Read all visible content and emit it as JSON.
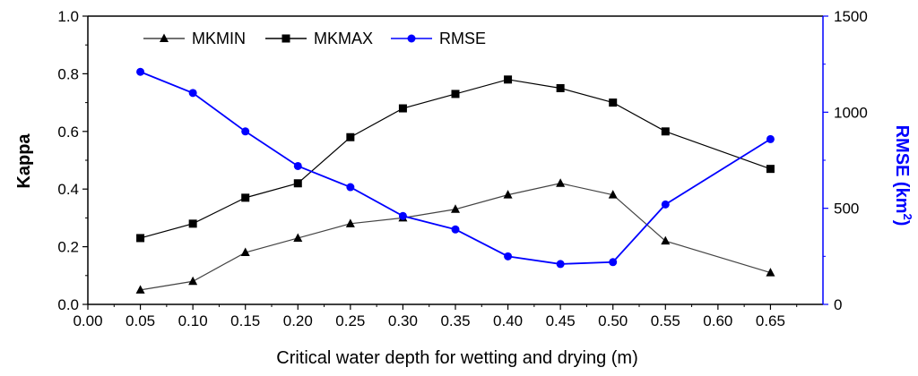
{
  "chart_data": {
    "type": "line",
    "xlabel": "Critical water depth for wetting and drying (m)",
    "ylabel_left": "Kappa",
    "ylabel_right_base": "RMSE (km",
    "ylabel_right_sup": "2",
    "ylabel_right_end": ")",
    "xlim": [
      0.0,
      0.7
    ],
    "ylim_left": [
      0.0,
      1.0
    ],
    "ylim_right": [
      0,
      1500
    ],
    "x_ticks": [
      "0.00",
      "0.05",
      "0.10",
      "0.15",
      "0.20",
      "0.25",
      "0.30",
      "0.35",
      "0.40",
      "0.45",
      "0.50",
      "0.55",
      "0.60",
      "0.65"
    ],
    "y_left_ticks": [
      "0.0",
      "0.2",
      "0.4",
      "0.6",
      "0.8",
      "1.0"
    ],
    "y_right_ticks": [
      "0",
      "500",
      "1000",
      "1500"
    ],
    "colors": {
      "black": "#000000",
      "rmse": "#0000ff",
      "mkmin_line": "#444444"
    },
    "series": [
      {
        "name": "MKMIN",
        "axis": "left",
        "marker": "triangle",
        "x": [
          0.05,
          0.1,
          0.15,
          0.2,
          0.25,
          0.3,
          0.35,
          0.4,
          0.45,
          0.5,
          0.55,
          0.65
        ],
        "values": [
          0.05,
          0.08,
          0.18,
          0.23,
          0.28,
          0.3,
          0.33,
          0.38,
          0.42,
          0.38,
          0.22,
          0.11
        ]
      },
      {
        "name": "MKMAX",
        "axis": "left",
        "marker": "square",
        "x": [
          0.05,
          0.1,
          0.15,
          0.2,
          0.25,
          0.3,
          0.35,
          0.4,
          0.45,
          0.5,
          0.55,
          0.65
        ],
        "values": [
          0.23,
          0.28,
          0.37,
          0.42,
          0.58,
          0.68,
          0.73,
          0.78,
          0.75,
          0.7,
          0.6,
          0.47
        ]
      },
      {
        "name": "RMSE",
        "axis": "right",
        "marker": "circle",
        "x": [
          0.05,
          0.1,
          0.15,
          0.2,
          0.25,
          0.3,
          0.35,
          0.4,
          0.45,
          0.5,
          0.55,
          0.65
        ],
        "values": [
          1210,
          1100,
          900,
          720,
          610,
          460,
          390,
          250,
          210,
          220,
          520,
          860
        ]
      }
    ],
    "legend": [
      "MKMIN",
      "MKMAX",
      "RMSE"
    ],
    "legend_position": "top-left",
    "grid": false
  }
}
